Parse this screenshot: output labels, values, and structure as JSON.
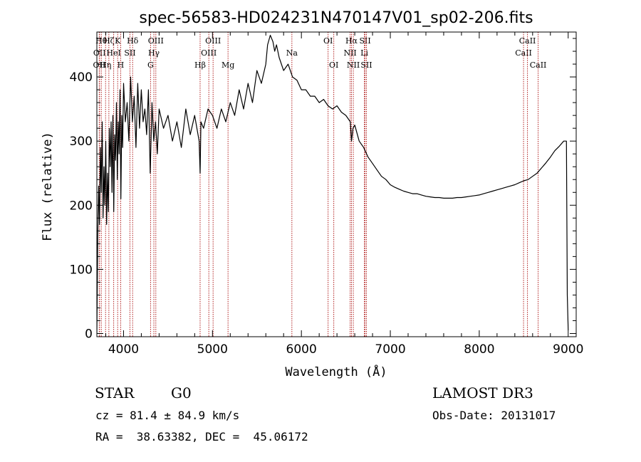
{
  "chart_data": {
    "type": "line",
    "title": "spec-56583-HD024231N470147V01_sp02-206.fits",
    "xlabel": "Wavelength (Å)",
    "ylabel": "Flux (relative)",
    "xlim": [
      3700,
      9090
    ],
    "ylim": [
      -5,
      470
    ],
    "x_ticks": [
      4000,
      5000,
      6000,
      7000,
      8000,
      9000
    ],
    "y_ticks": [
      0,
      100,
      200,
      300,
      400
    ],
    "grid": false,
    "legend": "none",
    "line_color": "#000000",
    "marker_color": "#b22222",
    "series": [
      {
        "x": [
          3700,
          3710,
          3720,
          3730,
          3740,
          3750,
          3760,
          3770,
          3780,
          3790,
          3800,
          3810,
          3820,
          3830,
          3840,
          3850,
          3860,
          3870,
          3880,
          3890,
          3900,
          3910,
          3920,
          3930,
          3940,
          3950,
          3960,
          3970,
          3980,
          3990,
          4000,
          4020,
          4040,
          4060,
          4080,
          4100,
          4120,
          4140,
          4160,
          4180,
          4200,
          4220,
          4240,
          4260,
          4280,
          4300,
          4320,
          4340,
          4360,
          4380,
          4400,
          4450,
          4500,
          4550,
          4600,
          4650,
          4700,
          4750,
          4800,
          4850,
          4861,
          4870,
          4900,
          4950,
          5000,
          5050,
          5100,
          5150,
          5200,
          5250,
          5300,
          5350,
          5400,
          5450,
          5500,
          5550,
          5600,
          5620,
          5650,
          5680,
          5700,
          5720,
          5750,
          5800,
          5850,
          5900,
          5950,
          6000,
          6050,
          6100,
          6150,
          6200,
          6250,
          6300,
          6350,
          6400,
          6450,
          6500,
          6550,
          6563,
          6580,
          6600,
          6650,
          6700,
          6750,
          6800,
          6850,
          6900,
          6950,
          7000,
          7050,
          7100,
          7150,
          7200,
          7250,
          7300,
          7350,
          7400,
          7450,
          7500,
          7550,
          7600,
          7650,
          7700,
          7750,
          7800,
          7850,
          7900,
          7950,
          8000,
          8050,
          8100,
          8150,
          8200,
          8250,
          8300,
          8350,
          8400,
          8450,
          8500,
          8550,
          8600,
          8650,
          8700,
          8750,
          8800,
          8850,
          8900,
          8950,
          8980,
          8990,
          9000
        ],
        "y": [
          0,
          150,
          230,
          170,
          290,
          220,
          330,
          180,
          260,
          200,
          300,
          170,
          250,
          190,
          320,
          260,
          330,
          220,
          340,
          190,
          310,
          270,
          360,
          240,
          330,
          280,
          380,
          210,
          340,
          290,
          390,
          330,
          360,
          300,
          400,
          330,
          370,
          290,
          390,
          320,
          380,
          330,
          350,
          310,
          380,
          250,
          360,
          300,
          330,
          280,
          350,
          320,
          340,
          300,
          330,
          290,
          350,
          310,
          340,
          300,
          250,
          330,
          320,
          350,
          340,
          320,
          350,
          330,
          360,
          340,
          380,
          350,
          390,
          360,
          410,
          390,
          420,
          450,
          465,
          455,
          440,
          450,
          430,
          410,
          420,
          400,
          395,
          380,
          380,
          370,
          370,
          360,
          365,
          355,
          350,
          355,
          345,
          340,
          330,
          300,
          320,
          325,
          300,
          290,
          275,
          265,
          255,
          245,
          240,
          232,
          228,
          225,
          222,
          220,
          218,
          218,
          216,
          214,
          213,
          212,
          212,
          211,
          211,
          211,
          212,
          212,
          213,
          214,
          215,
          216,
          218,
          220,
          222,
          224,
          226,
          228,
          230,
          232,
          235,
          238,
          240,
          245,
          250,
          258,
          266,
          275,
          285,
          292,
          300,
          300,
          60,
          5
        ]
      }
    ],
    "line_markers": [
      {
        "x": 3727,
        "label": "OII",
        "row": 2
      },
      {
        "x": 3730,
        "label": "OII",
        "row": 1
      },
      {
        "x": 3750,
        "label": "Hθ",
        "row": 0
      },
      {
        "x": 3798,
        "label": "Hη",
        "row": 2
      },
      {
        "x": 3835,
        "label": "Hζ",
        "row": 0
      },
      {
        "x": 3889,
        "label": "HeI",
        "row": 1
      },
      {
        "x": 3934,
        "label": "K",
        "row": 0
      },
      {
        "x": 3968,
        "label": "H",
        "row": 2
      },
      {
        "x": 4072,
        "label": "SII",
        "row": 1
      },
      {
        "x": 4102,
        "label": "Hδ",
        "row": 0
      },
      {
        "x": 4304,
        "label": "G",
        "row": 2
      },
      {
        "x": 4341,
        "label": "Hγ",
        "row": 1
      },
      {
        "x": 4363,
        "label": "OIII",
        "row": 0
      },
      {
        "x": 4861,
        "label": "Hβ",
        "row": 2
      },
      {
        "x": 4959,
        "label": "OIII",
        "row": 1
      },
      {
        "x": 5007,
        "label": "OIII",
        "row": 0
      },
      {
        "x": 5175,
        "label": "Mg",
        "row": 2
      },
      {
        "x": 5893,
        "label": "Na",
        "row": 1
      },
      {
        "x": 6300,
        "label": "OI",
        "row": 0
      },
      {
        "x": 6364,
        "label": "OI",
        "row": 2
      },
      {
        "x": 6548,
        "label": "NII",
        "row": 1
      },
      {
        "x": 6563,
        "label": "Hα",
        "row": 0
      },
      {
        "x": 6584,
        "label": "NII",
        "row": 2
      },
      {
        "x": 6708,
        "label": "Li",
        "row": 1
      },
      {
        "x": 6716,
        "label": "SII",
        "row": 0
      },
      {
        "x": 6731,
        "label": "SII",
        "row": 2
      },
      {
        "x": 8498,
        "label": "CaII",
        "row": 1
      },
      {
        "x": 8542,
        "label": "CaII",
        "row": 0
      },
      {
        "x": 8662,
        "label": "CaII",
        "row": 2
      }
    ]
  },
  "footer": {
    "object_class": "STAR",
    "subclass": "G0",
    "survey": "LAMOST DR3",
    "redshift": "cz = 81.4 ± 84.9 km/s",
    "obs_date": "Obs-Date: 20131017",
    "coords": "RA =  38.63382, DEC =  45.06172"
  }
}
